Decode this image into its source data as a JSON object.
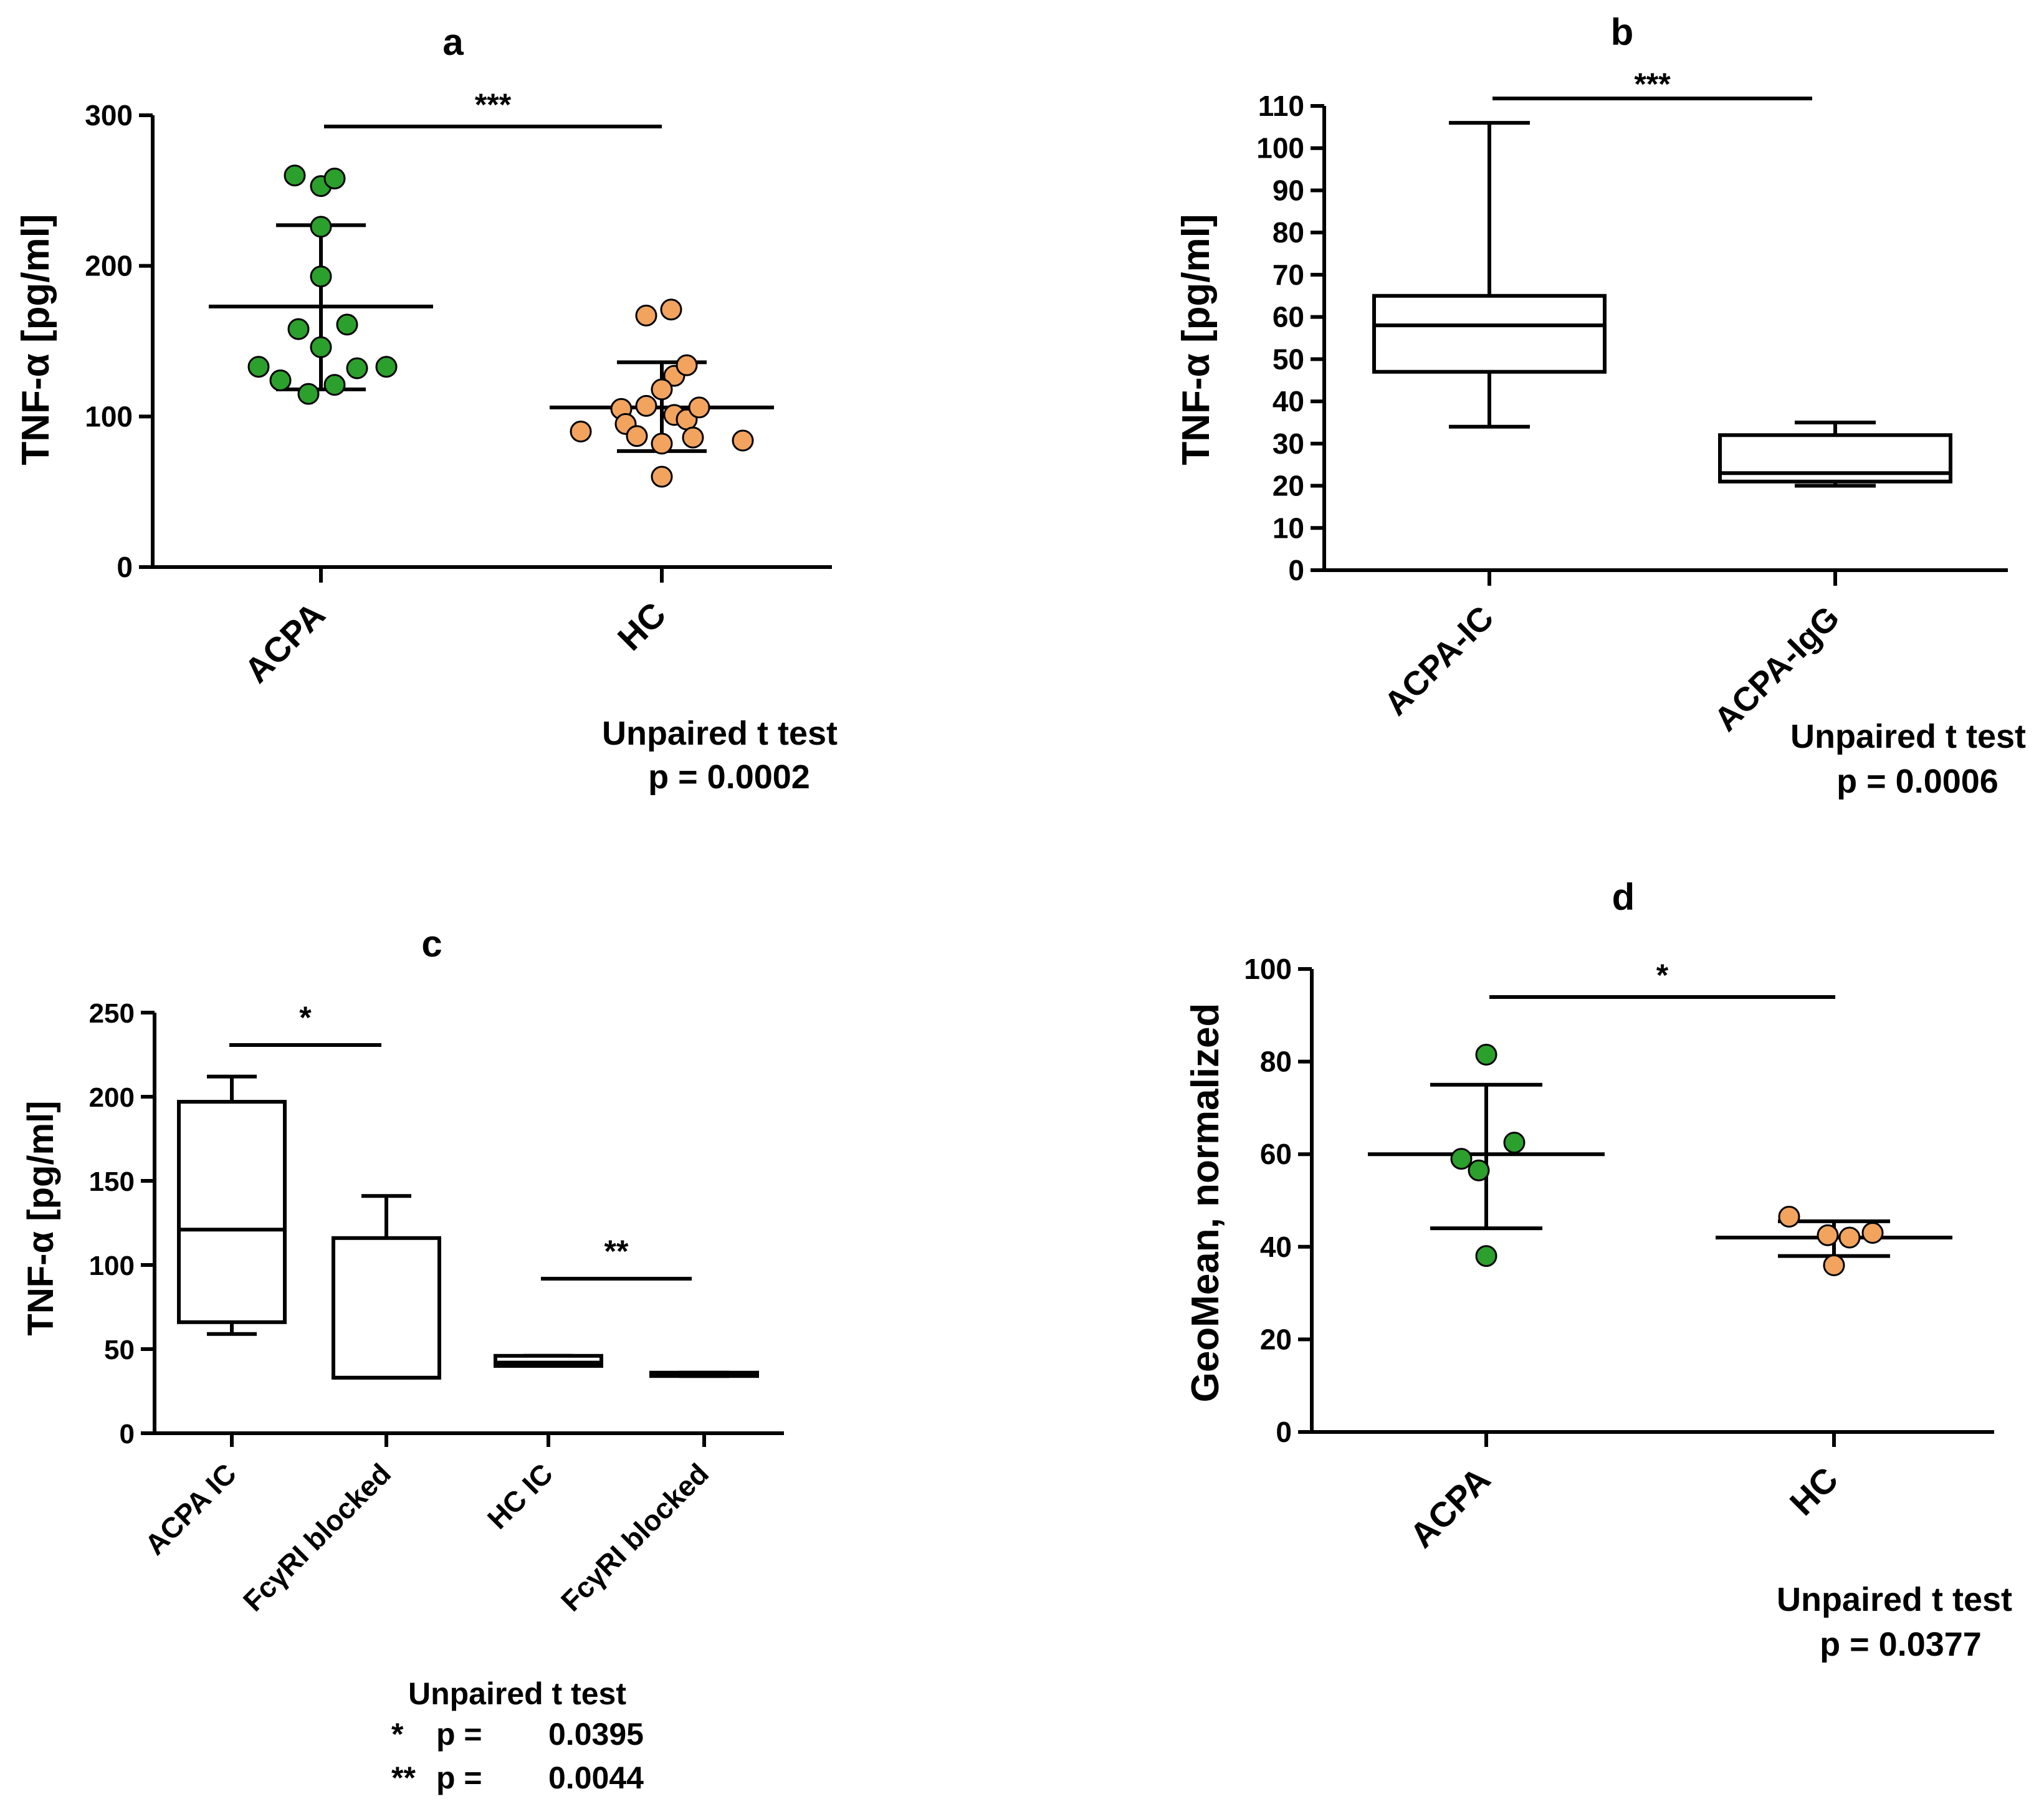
{
  "colors": {
    "acpa": "#2ca02c",
    "hc": "#f2a35e",
    "line": "#000000"
  },
  "chart_data": [
    {
      "id": "a",
      "type": "scatter",
      "panel_label": "a",
      "ylabel": "TNF-α [pg/ml]",
      "ylim": [
        0,
        300
      ],
      "yticks": [
        0,
        100,
        200,
        300
      ],
      "categories": [
        "ACPA",
        "HC"
      ],
      "series": [
        {
          "name": "ACPA",
          "color": "acpa",
          "values": [
            260,
            253,
            258,
            226,
            193,
            158,
            161,
            146,
            133,
            124,
            115,
            121,
            132,
            133
          ],
          "mean": 173,
          "sd_low": 118,
          "sd_high": 227
        },
        {
          "name": "HC",
          "color": "hc",
          "values": [
            167,
            171,
            127,
            134,
            118,
            105,
            107,
            101,
            98,
            106,
            95,
            90,
            87,
            82,
            86,
            84,
            60
          ],
          "mean": 106,
          "sd_low": 77,
          "sd_high": 136
        }
      ],
      "significance": [
        {
          "from": 0,
          "to": 1,
          "label": "***"
        }
      ],
      "stats": {
        "test": "Unpaired t test",
        "p_label": "p = 0.0002"
      }
    },
    {
      "id": "b",
      "type": "box",
      "panel_label": "b",
      "ylabel": "TNF-α [pg/ml]",
      "ylim": [
        0,
        110
      ],
      "yticks": [
        0,
        10,
        20,
        30,
        40,
        50,
        60,
        70,
        80,
        90,
        100,
        110
      ],
      "categories": [
        "ACPA-IC",
        "ACPA-IgG"
      ],
      "boxes": [
        {
          "min": 34,
          "q1": 47,
          "median": 58,
          "q3": 65,
          "max": 106
        },
        {
          "min": 20,
          "q1": 21,
          "median": 23,
          "q3": 32,
          "max": 35
        }
      ],
      "significance": [
        {
          "from": 0,
          "to": 1,
          "label": "***"
        }
      ],
      "stats": {
        "test": "Unpaired t test",
        "p_label": "p = 0.0006"
      }
    },
    {
      "id": "c",
      "type": "box",
      "panel_label": "c",
      "ylabel": "TNF-α [pg/ml]",
      "ylim": [
        0,
        250
      ],
      "yticks": [
        0,
        50,
        100,
        150,
        200,
        250
      ],
      "categories": [
        "ACPA IC",
        "FcγRI blocked",
        "HC IC",
        "FcγRI blocked"
      ],
      "boxes": [
        {
          "min": 59,
          "q1": 66,
          "median": 121,
          "q3": 197,
          "max": 212
        },
        {
          "min": 33,
          "q1": 33,
          "median": 33,
          "q3": 116,
          "max": 141
        },
        {
          "min": 40,
          "q1": 40,
          "median": 42,
          "q3": 46,
          "max": 46
        },
        {
          "min": 34,
          "q1": 34,
          "median": 35,
          "q3": 36,
          "max": 36
        }
      ],
      "significance": [
        {
          "from": 0,
          "to": 1,
          "label": "*"
        },
        {
          "from": 2,
          "to": 3,
          "label": "**"
        }
      ],
      "stats": {
        "test": "Unpaired t test",
        "rows": [
          {
            "mark": "*",
            "p": "p =",
            "value": "0.0395"
          },
          {
            "mark": "**",
            "p": "p =",
            "value": "0.0044"
          }
        ]
      }
    },
    {
      "id": "d",
      "type": "scatter",
      "panel_label": "d",
      "ylabel": "GeoMean, normalized",
      "ylim": [
        0,
        100
      ],
      "yticks": [
        0,
        20,
        40,
        60,
        80,
        100
      ],
      "categories": [
        "ACPA",
        "HC"
      ],
      "series": [
        {
          "name": "ACPA",
          "color": "acpa",
          "values": [
            81.5,
            62.5,
            59,
            56.5,
            38
          ],
          "mean": 60,
          "sd_low": 44,
          "sd_high": 75
        },
        {
          "name": "HC",
          "color": "hc",
          "values": [
            46.5,
            42.5,
            42,
            43,
            36
          ],
          "mean": 42,
          "sd_low": 38,
          "sd_high": 45.5
        }
      ],
      "significance": [
        {
          "from": 0,
          "to": 1,
          "label": "*"
        }
      ],
      "stats": {
        "test": "Unpaired t test",
        "p_label": "p = 0.0377"
      }
    }
  ]
}
